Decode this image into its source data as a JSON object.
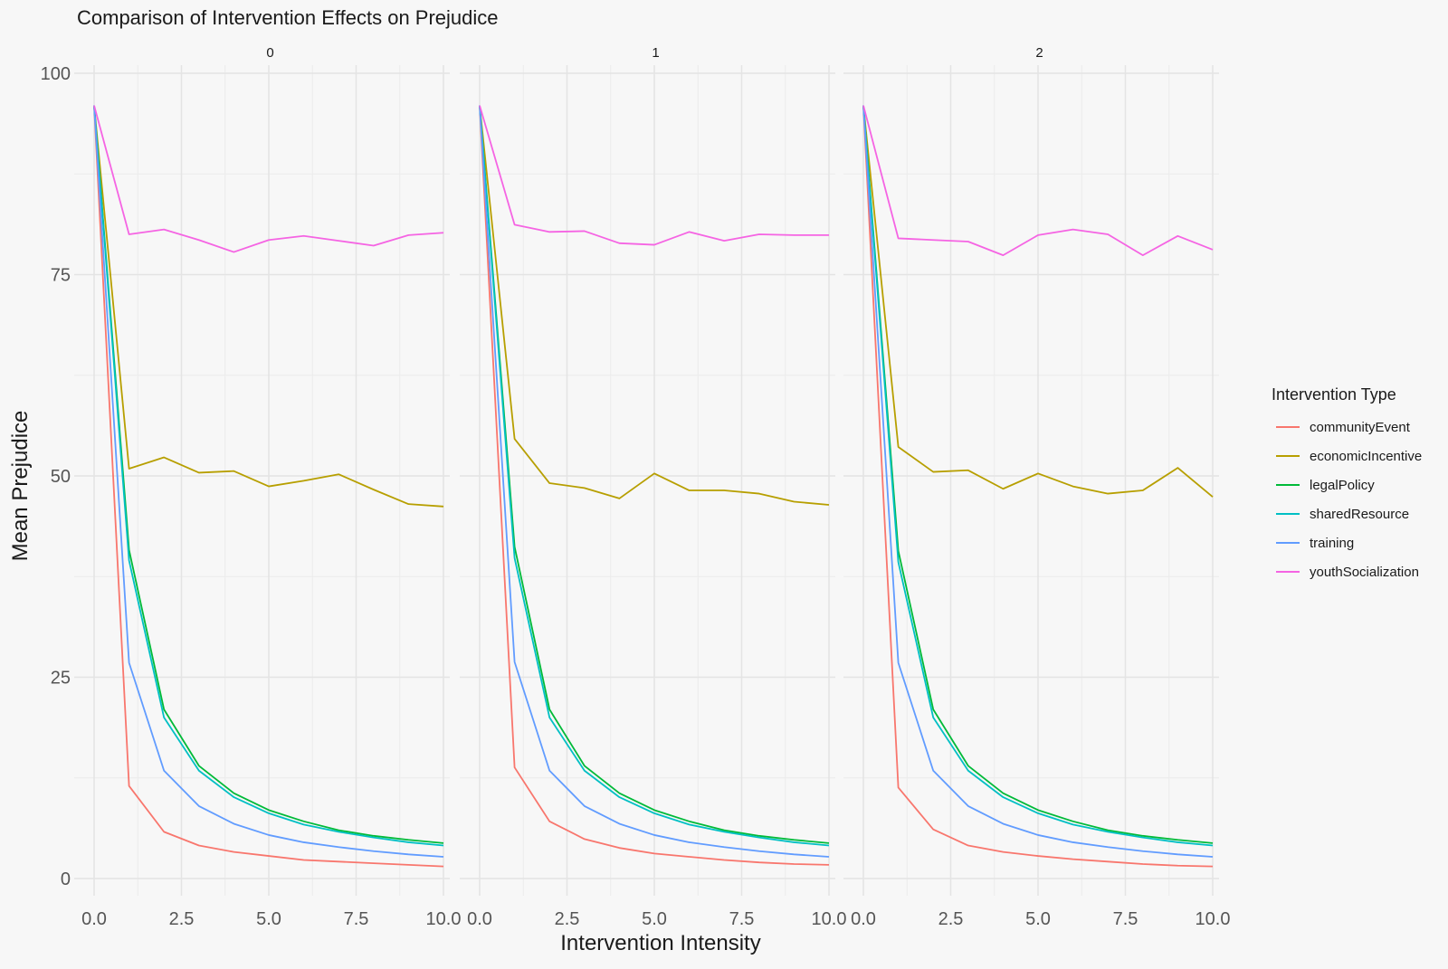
{
  "chart_data": {
    "type": "line",
    "title": "Comparison of Intervention Effects on Prejudice",
    "xlabel": "Intervention Intensity",
    "ylabel": "Mean Prejudice",
    "xlim": [
      0,
      10
    ],
    "ylim": [
      0,
      100
    ],
    "x": [
      0,
      1,
      2,
      3,
      4,
      5,
      6,
      7,
      8,
      9,
      10
    ],
    "x_ticks": [
      "0.0",
      "2.5",
      "5.0",
      "7.5",
      "10.0"
    ],
    "y_ticks": [
      "0",
      "25",
      "50",
      "75",
      "100"
    ],
    "grid": true,
    "legend_title": "Intervention Type",
    "legend_position": "right",
    "facets": [
      {
        "label": "0",
        "series": [
          {
            "name": "communityEvent",
            "values": [
              96,
              11.5,
              5.8,
              4.1,
              3.3,
              2.8,
              2.3,
              2.1,
              1.9,
              1.7,
              1.5
            ]
          },
          {
            "name": "economicIncentive",
            "values": [
              96,
              50.9,
              52.3,
              50.4,
              50.6,
              48.7,
              49.4,
              50.2,
              48.3,
              46.5,
              46.2
            ]
          },
          {
            "name": "legalPolicy",
            "values": [
              96,
              40.8,
              21.0,
              14.0,
              10.6,
              8.5,
              7.1,
              6.0,
              5.3,
              4.8,
              4.4
            ]
          },
          {
            "name": "sharedResource",
            "values": [
              96,
              39.5,
              20.0,
              13.4,
              10.1,
              8.1,
              6.7,
              5.8,
              5.1,
              4.5,
              4.1
            ]
          },
          {
            "name": "training",
            "values": [
              96,
              26.8,
              13.4,
              9.0,
              6.8,
              5.4,
              4.5,
              3.9,
              3.4,
              3.0,
              2.7
            ]
          },
          {
            "name": "youthSocialization",
            "values": [
              96,
              80.0,
              80.6,
              79.3,
              77.8,
              79.3,
              79.8,
              79.2,
              78.6,
              79.9,
              80.2
            ]
          }
        ]
      },
      {
        "label": "1",
        "series": [
          {
            "name": "communityEvent",
            "values": [
              96,
              13.8,
              7.1,
              4.9,
              3.8,
              3.1,
              2.7,
              2.3,
              2.0,
              1.8,
              1.7
            ]
          },
          {
            "name": "economicIncentive",
            "values": [
              96,
              54.6,
              49.1,
              48.5,
              47.2,
              50.3,
              48.2,
              48.2,
              47.8,
              46.8,
              46.4
            ]
          },
          {
            "name": "legalPolicy",
            "values": [
              96,
              41.2,
              21.0,
              14.0,
              10.6,
              8.5,
              7.1,
              6.0,
              5.3,
              4.8,
              4.4
            ]
          },
          {
            "name": "sharedResource",
            "values": [
              96,
              39.8,
              20.0,
              13.4,
              10.1,
              8.1,
              6.7,
              5.8,
              5.1,
              4.5,
              4.1
            ]
          },
          {
            "name": "training",
            "values": [
              96,
              26.9,
              13.4,
              9.0,
              6.8,
              5.4,
              4.5,
              3.9,
              3.4,
              3.0,
              2.7
            ]
          },
          {
            "name": "youthSocialization",
            "values": [
              96,
              81.2,
              80.3,
              80.4,
              78.9,
              78.7,
              80.3,
              79.2,
              80.0,
              79.9,
              79.9
            ]
          }
        ]
      },
      {
        "label": "2",
        "series": [
          {
            "name": "communityEvent",
            "values": [
              96,
              11.3,
              6.1,
              4.1,
              3.3,
              2.8,
              2.4,
              2.1,
              1.8,
              1.6,
              1.5
            ]
          },
          {
            "name": "economicIncentive",
            "values": [
              96,
              53.6,
              50.5,
              50.7,
              48.4,
              50.3,
              48.7,
              47.8,
              48.2,
              51.0,
              47.4
            ]
          },
          {
            "name": "legalPolicy",
            "values": [
              96,
              40.7,
              21.0,
              14.0,
              10.6,
              8.5,
              7.1,
              6.0,
              5.3,
              4.8,
              4.4
            ]
          },
          {
            "name": "sharedResource",
            "values": [
              96,
              39.3,
              20.0,
              13.4,
              10.1,
              8.1,
              6.7,
              5.8,
              5.1,
              4.5,
              4.1
            ]
          },
          {
            "name": "training",
            "values": [
              96,
              26.8,
              13.4,
              9.0,
              6.8,
              5.4,
              4.5,
              3.9,
              3.4,
              3.0,
              2.7
            ]
          },
          {
            "name": "youthSocialization",
            "values": [
              96,
              79.5,
              79.3,
              79.1,
              77.4,
              79.9,
              80.6,
              80.0,
              77.4,
              79.8,
              78.1
            ]
          }
        ]
      }
    ],
    "colors": {
      "communityEvent": "#F8766D",
      "economicIncentive": "#B79F00",
      "legalPolicy": "#00BA38",
      "sharedResource": "#00BFC4",
      "training": "#619CFF",
      "youthSocialization": "#F564E3"
    }
  }
}
